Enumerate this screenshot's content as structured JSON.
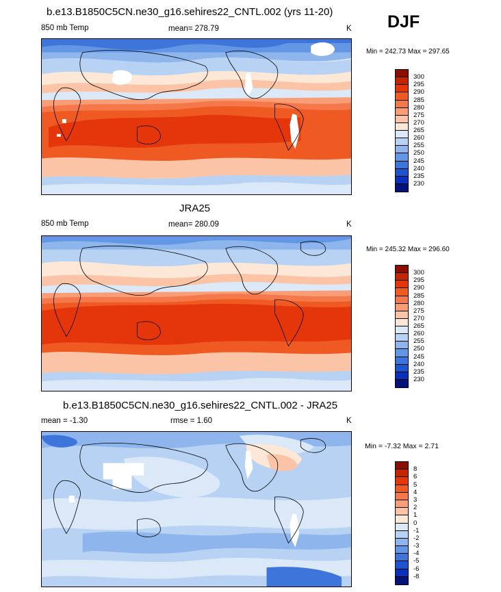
{
  "season": "DJF",
  "panels": [
    {
      "title": "b.e13.B1850C5CN.ne30_g16.sehires22_CNTL.002 (yrs 11-20)",
      "left": "850 mb Temp",
      "center": "mean= 278.79",
      "units": "K",
      "minmax": "Min = 242.73 Max = 297.65"
    },
    {
      "title": "JRA25",
      "left": "850 mb Temp",
      "center": "mean= 280.09",
      "units": "K",
      "minmax": "Min = 245.32 Max = 296.60"
    },
    {
      "title": "b.e13.B1850C5CN.ne30_g16.sehires22_CNTL.002 - JRA25",
      "left": "mean =  -1.30",
      "center": "rmse =   1.60",
      "units": "K",
      "minmax": "Min =  -7.32 Max =   2.71"
    }
  ],
  "colorbars": {
    "temperature": {
      "labels": [
        "300",
        "295",
        "290",
        "285",
        "280",
        "275",
        "270",
        "265",
        "260",
        "255",
        "250",
        "245",
        "240",
        "235",
        "230"
      ],
      "colors": [
        "#8b0f00",
        "#c42400",
        "#e4360a",
        "#ef5a22",
        "#f5784a",
        "#f99d77",
        "#fcc4a6",
        "#fde8d8",
        "#dae8f8",
        "#b7d2f2",
        "#8fb6ec",
        "#6396e4",
        "#3d75db",
        "#1c55cf",
        "#0a31b8",
        "#03137a"
      ]
    },
    "difference": {
      "labels": [
        "8",
        "6",
        "5",
        "4",
        "3",
        "2",
        "1",
        "0",
        "-1",
        "-2",
        "-3",
        "-4",
        "-5",
        "-6",
        "-8"
      ],
      "colors": [
        "#8b0f00",
        "#c42400",
        "#e4360a",
        "#ef5a22",
        "#f5784a",
        "#f99d77",
        "#fcc4a6",
        "#fde8d8",
        "#dae8f8",
        "#b7d2f2",
        "#8fb6ec",
        "#6396e4",
        "#3d75db",
        "#1c55cf",
        "#0a31b8",
        "#03137a"
      ]
    }
  }
}
